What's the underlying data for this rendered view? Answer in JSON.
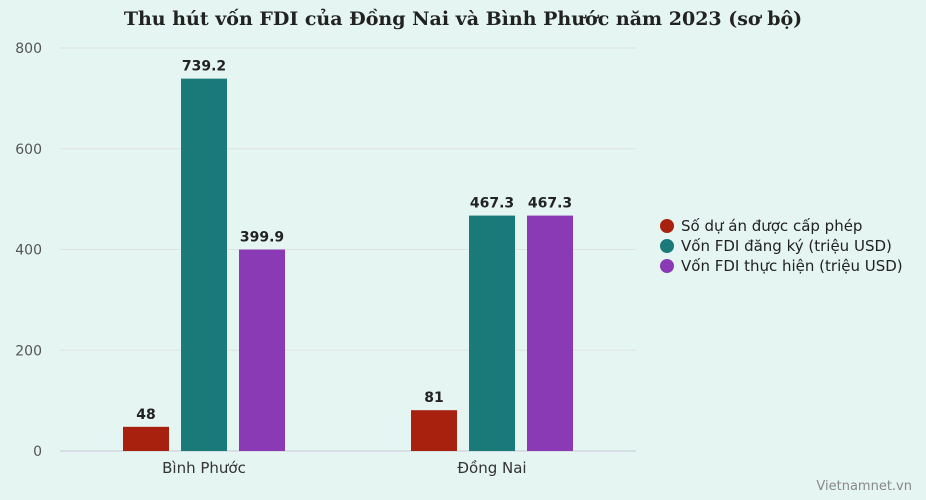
{
  "chart_data": {
    "type": "bar",
    "title": "Thu hút vốn FDI của Đồng Nai và Bình Phước năm 2023 (sơ bộ)",
    "categories": [
      "Bình Phước",
      "Đồng Nai"
    ],
    "series": [
      {
        "name": "Số dự án được cấp phép",
        "values": [
          48,
          81
        ],
        "color": "#a8210f"
      },
      {
        "name": "Vốn FDI đăng ký (triệu USD)",
        "values": [
          739.2,
          467.3
        ],
        "color": "#1a7a7a"
      },
      {
        "name": "Vốn FDI thực hiện (triệu USD)",
        "values": [
          399.9,
          467.3
        ],
        "color": "#8a3ab4"
      }
    ],
    "ylim": [
      0,
      800
    ],
    "yticks": [
      0,
      200,
      400,
      600,
      800
    ],
    "grid": true,
    "legend": "right",
    "xlabel": "",
    "ylabel": ""
  },
  "source": "Vietnamnet.vn"
}
